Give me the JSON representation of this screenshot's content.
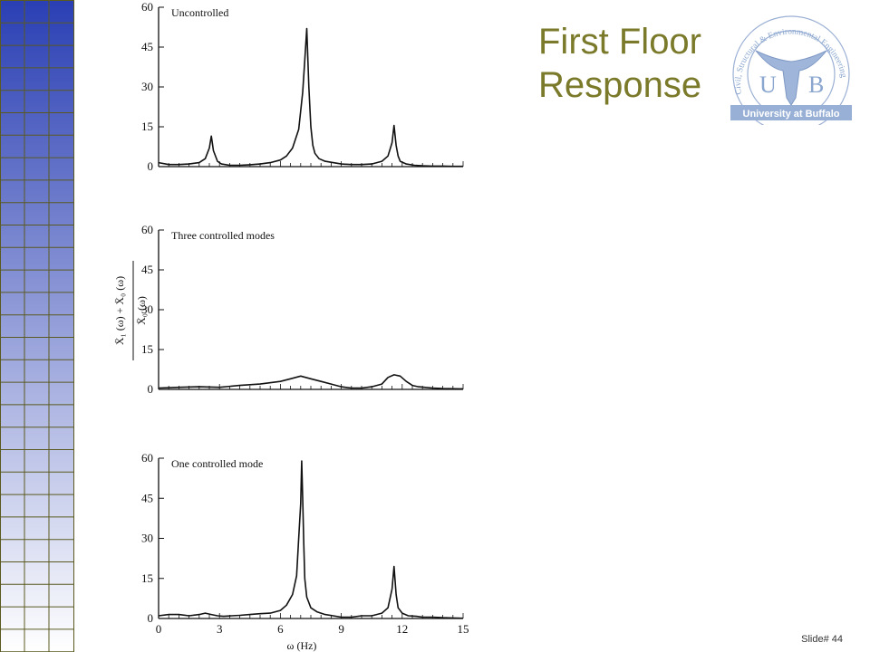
{
  "slide": {
    "title_line1": "First Floor",
    "title_line2": "Response",
    "slide_number": "Slide# 44",
    "title_color": "#7a7a2a"
  },
  "logo": {
    "letters_left": "U",
    "letters_right": "B",
    "banner": "University at Buffalo",
    "ring_text": "Civil, Structural & Environmental Engineering",
    "icon": "ub-bull-horns-logo",
    "accent_color": "#8aa6cf"
  },
  "sidebar": {
    "icon": "blue-gradient-grid-decoration",
    "top_color": "#2a3fb4",
    "bottom_color": "#ffffff",
    "line_color": "#5a5a20"
  },
  "chart_data": [
    {
      "type": "line",
      "title": "Uncontrolled",
      "xlim": [
        0,
        15
      ],
      "ylim": [
        0,
        60
      ],
      "yticks": [
        0,
        15,
        30,
        45,
        60
      ],
      "x": [
        0.0,
        0.5,
        1.0,
        1.5,
        2.0,
        2.3,
        2.5,
        2.6,
        2.7,
        2.9,
        3.1,
        3.5,
        4.0,
        4.5,
        5.0,
        5.5,
        6.0,
        6.3,
        6.6,
        6.9,
        7.1,
        7.2,
        7.3,
        7.4,
        7.5,
        7.6,
        7.7,
        7.9,
        8.2,
        8.6,
        9.0,
        9.5,
        10.0,
        10.5,
        11.0,
        11.3,
        11.5,
        11.6,
        11.7,
        11.8,
        11.9,
        12.2,
        12.6,
        13.0,
        13.5,
        14.0,
        14.5,
        15.0
      ],
      "values": [
        1.5,
        0.8,
        0.8,
        1.0,
        1.5,
        3.0,
        7.0,
        11.5,
        6.0,
        2.0,
        1.0,
        0.5,
        0.5,
        0.7,
        1.0,
        1.5,
        2.5,
        4.0,
        7.0,
        14.0,
        28.0,
        40.0,
        52.0,
        30.0,
        15.0,
        8.0,
        5.0,
        3.0,
        2.0,
        1.5,
        1.0,
        0.8,
        0.8,
        1.0,
        2.0,
        4.0,
        9.0,
        15.5,
        8.0,
        4.0,
        2.0,
        1.0,
        0.5,
        0.3,
        0.2,
        0.2,
        0.1,
        0.1
      ]
    },
    {
      "type": "line",
      "title": "Three controlled modes",
      "xlim": [
        0,
        15
      ],
      "ylim": [
        0,
        60
      ],
      "yticks": [
        0,
        15,
        30,
        45,
        60
      ],
      "x": [
        0.0,
        1.0,
        2.0,
        3.0,
        4.0,
        5.0,
        6.0,
        6.5,
        7.0,
        7.5,
        8.0,
        8.5,
        9.0,
        9.5,
        10.0,
        10.5,
        11.0,
        11.3,
        11.6,
        11.9,
        12.2,
        12.5,
        12.8,
        13.5,
        14.0,
        15.0
      ],
      "values": [
        0.5,
        0.8,
        1.0,
        0.8,
        1.5,
        2.0,
        3.0,
        4.0,
        5.0,
        4.0,
        3.0,
        2.0,
        1.0,
        0.5,
        0.5,
        1.0,
        2.0,
        4.5,
        5.5,
        5.0,
        3.0,
        1.5,
        1.0,
        0.5,
        0.3,
        0.2
      ]
    },
    {
      "type": "line",
      "title": "One controlled mode",
      "xlabel": "ω (Hz)",
      "xlim": [
        0,
        15
      ],
      "ylim": [
        0,
        60
      ],
      "xticks": [
        0,
        3,
        6,
        9,
        12,
        15
      ],
      "yticks": [
        0,
        15,
        30,
        45,
        60
      ],
      "x": [
        0.0,
        0.5,
        1.0,
        1.5,
        2.0,
        2.3,
        2.6,
        2.9,
        3.2,
        3.6,
        4.0,
        4.5,
        5.0,
        5.5,
        6.0,
        6.3,
        6.6,
        6.8,
        6.9,
        7.0,
        7.05,
        7.1,
        7.15,
        7.2,
        7.3,
        7.5,
        7.8,
        8.2,
        8.6,
        9.0,
        9.5,
        10.0,
        10.5,
        11.0,
        11.3,
        11.5,
        11.6,
        11.7,
        11.8,
        12.0,
        12.3,
        12.7,
        13.0,
        13.5,
        14.0,
        14.5,
        15.0
      ],
      "values": [
        1.0,
        1.5,
        1.5,
        1.0,
        1.5,
        2.0,
        1.5,
        1.0,
        0.8,
        1.0,
        1.2,
        1.5,
        1.8,
        2.0,
        3.0,
        5.0,
        9.0,
        16.0,
        30.0,
        43.0,
        59.0,
        45.0,
        28.0,
        15.0,
        8.0,
        4.0,
        2.5,
        1.5,
        1.0,
        0.5,
        0.5,
        1.0,
        1.0,
        2.0,
        4.0,
        11.0,
        19.5,
        9.0,
        4.0,
        2.0,
        1.0,
        0.8,
        0.5,
        0.5,
        0.3,
        0.2,
        0.1
      ]
    }
  ]
}
